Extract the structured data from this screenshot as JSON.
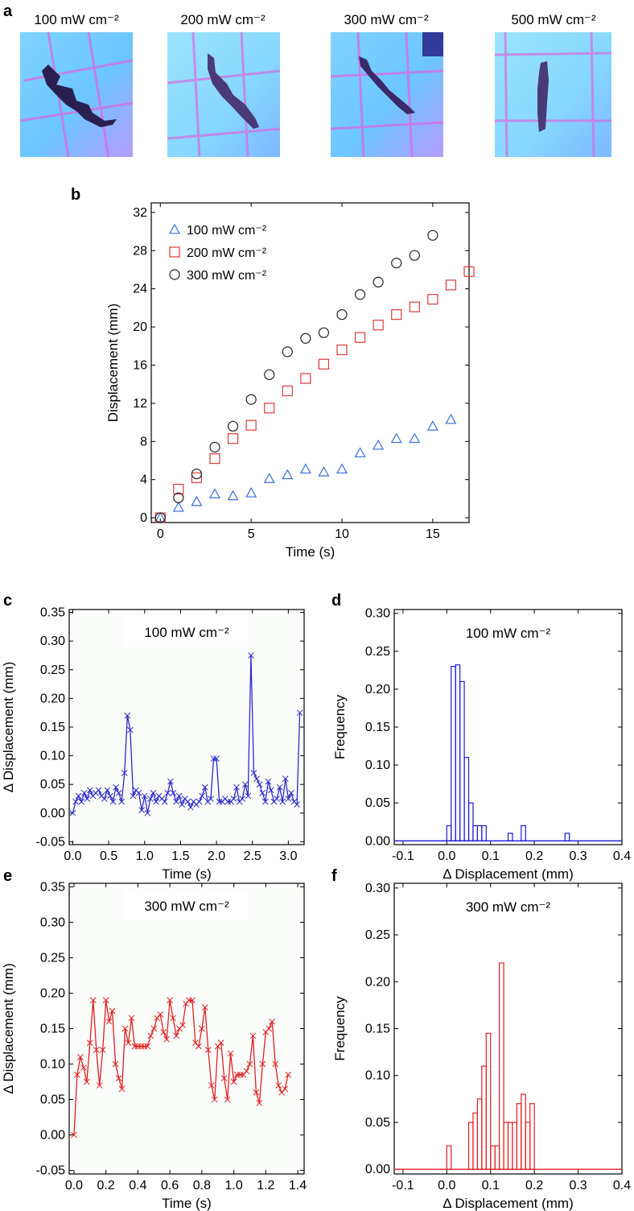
{
  "figure": {
    "panel_letters": [
      "a",
      "b",
      "c",
      "d",
      "e",
      "f"
    ]
  },
  "photos": {
    "labels": [
      "100 mW cm⁻²",
      "200 mW cm⁻²",
      "300 mW cm⁻²",
      "500 mW cm⁻²"
    ]
  },
  "colors": {
    "blue_series": "#3a6fd8",
    "red_series": "#e03a3a",
    "black_series": "#222222",
    "hist_blue": "#1a1adc",
    "hist_red": "#e02020",
    "trace_blue": "#2c2cc8",
    "trace_red": "#e02020"
  },
  "chart_data": [
    {
      "panel": "b",
      "type": "scatter",
      "xlabel": "Time (s)",
      "ylabel": "Displacement (mm)",
      "xlim": [
        -0.5,
        17
      ],
      "ylim": [
        -0.5,
        33
      ],
      "xticks": [
        0,
        5,
        10,
        15
      ],
      "yticks": [
        0,
        4,
        8,
        12,
        16,
        20,
        24,
        28,
        32
      ],
      "legend_position": "top-left",
      "series": [
        {
          "name": "100 mW cm⁻²",
          "marker": "triangle",
          "color": "#3a6fd8",
          "x": [
            0,
            1,
            2,
            3,
            4,
            5,
            6,
            7,
            8,
            9,
            10,
            11,
            12,
            13,
            14,
            15,
            16
          ],
          "y": [
            0,
            1.1,
            1.7,
            2.5,
            2.3,
            2.6,
            4.1,
            4.5,
            5.1,
            4.8,
            5.1,
            6.8,
            7.6,
            8.3,
            8.3,
            9.6,
            10.3
          ]
        },
        {
          "name": "200 mW cm⁻²",
          "marker": "square",
          "color": "#e03a3a",
          "x": [
            0,
            1,
            2,
            3,
            4,
            5,
            6,
            7,
            8,
            9,
            10,
            11,
            12,
            13,
            14,
            15,
            16,
            17
          ],
          "y": [
            0,
            3.0,
            4.2,
            6.2,
            8.3,
            9.7,
            11.5,
            13.3,
            14.6,
            16.1,
            17.6,
            18.9,
            20.2,
            21.3,
            22.1,
            22.9,
            24.4,
            25.8
          ]
        },
        {
          "name": "300 mW cm⁻²",
          "marker": "circle",
          "color": "#222222",
          "x": [
            0,
            1,
            2,
            3,
            4,
            5,
            6,
            7,
            8,
            9,
            10,
            11,
            12,
            13,
            14,
            15
          ],
          "y": [
            0,
            2.1,
            4.6,
            7.4,
            9.6,
            12.4,
            15.0,
            17.4,
            18.8,
            19.4,
            21.3,
            23.4,
            24.7,
            26.7,
            27.5,
            29.6
          ]
        }
      ]
    },
    {
      "panel": "c",
      "type": "line",
      "annotation": "100 mW cm⁻²",
      "xlabel": "Time (s)",
      "ylabel": "Δ Displacement (mm)",
      "xlim": [
        -0.05,
        3.22
      ],
      "ylim": [
        -0.055,
        0.355
      ],
      "xticks": [
        0.0,
        0.5,
        1.0,
        1.5,
        2.0,
        2.5,
        3.0
      ],
      "yticks": [
        -0.05,
        0.0,
        0.05,
        0.1,
        0.15,
        0.2,
        0.25,
        0.3,
        0.35
      ],
      "series": [
        {
          "color": "#2c2cc8",
          "marker": "x",
          "x": [
            0.0,
            0.04,
            0.08,
            0.12,
            0.16,
            0.2,
            0.24,
            0.28,
            0.32,
            0.36,
            0.4,
            0.44,
            0.48,
            0.52,
            0.56,
            0.6,
            0.64,
            0.68,
            0.72,
            0.76,
            0.8,
            0.84,
            0.88,
            0.92,
            0.96,
            1.0,
            1.04,
            1.08,
            1.12,
            1.16,
            1.2,
            1.24,
            1.28,
            1.32,
            1.36,
            1.4,
            1.44,
            1.48,
            1.52,
            1.56,
            1.6,
            1.64,
            1.68,
            1.72,
            1.76,
            1.8,
            1.84,
            1.88,
            1.92,
            1.96,
            2.0,
            2.04,
            2.08,
            2.12,
            2.16,
            2.2,
            2.24,
            2.28,
            2.32,
            2.36,
            2.4,
            2.44,
            2.48,
            2.52,
            2.56,
            2.6,
            2.64,
            2.68,
            2.72,
            2.76,
            2.8,
            2.84,
            2.88,
            2.92,
            2.96,
            3.0,
            3.04,
            3.08,
            3.12,
            3.16
          ],
          "y": [
            0.0,
            0.02,
            0.03,
            0.02,
            0.035,
            0.025,
            0.04,
            0.03,
            0.035,
            0.04,
            0.03,
            0.025,
            0.04,
            0.03,
            0.02,
            0.045,
            0.035,
            0.02,
            0.07,
            0.17,
            0.145,
            0.03,
            0.04,
            0.035,
            0.005,
            0.03,
            0.0,
            0.025,
            0.035,
            0.02,
            0.03,
            0.025,
            0.02,
            0.035,
            0.055,
            0.035,
            0.02,
            0.03,
            0.015,
            0.025,
            0.02,
            0.01,
            0.02,
            0.015,
            0.02,
            0.03,
            0.045,
            0.02,
            0.025,
            0.095,
            0.095,
            0.02,
            0.02,
            0.025,
            0.02,
            0.02,
            0.025,
            0.045,
            0.02,
            0.025,
            0.05,
            0.03,
            0.275,
            0.07,
            0.06,
            0.05,
            0.035,
            0.02,
            0.055,
            0.04,
            0.02,
            0.025,
            0.045,
            0.02,
            0.06,
            0.025,
            0.035,
            0.02,
            0.015,
            0.175
          ]
        }
      ]
    },
    {
      "panel": "d",
      "type": "bar",
      "annotation": "100 mW cm⁻²",
      "xlabel": "Δ Displacement (mm)",
      "ylabel": "Frequency",
      "xlim": [
        -0.12,
        0.4
      ],
      "ylim": [
        -0.005,
        0.305
      ],
      "xticks": [
        -0.1,
        0.0,
        0.1,
        0.2,
        0.3,
        0.4
      ],
      "yticks": [
        0.0,
        0.05,
        0.1,
        0.15,
        0.2,
        0.25,
        0.3
      ],
      "bin_width": 0.01,
      "bin_starts": [
        0.0,
        0.01,
        0.02,
        0.03,
        0.04,
        0.05,
        0.06,
        0.07,
        0.08,
        0.09,
        0.1,
        0.11,
        0.12,
        0.13,
        0.14,
        0.15,
        0.16,
        0.17,
        0.18,
        0.19,
        0.2,
        0.21,
        0.22,
        0.23,
        0.24,
        0.25,
        0.26,
        0.27,
        0.28,
        0.29
      ],
      "values": [
        0.02,
        0.23,
        0.232,
        0.21,
        0.11,
        0.05,
        0.02,
        0.02,
        0.02,
        0.0,
        0.0,
        0.0,
        0.0,
        0.0,
        0.01,
        0.0,
        0.0,
        0.02,
        0.0,
        0.0,
        0.0,
        0.0,
        0.0,
        0.0,
        0.0,
        0.0,
        0.0,
        0.01,
        0.0,
        0.0
      ],
      "color": "#1a1adc"
    },
    {
      "panel": "e",
      "type": "line",
      "annotation": "300 mW cm⁻²",
      "xlabel": "Time (s)",
      "ylabel": "Δ Displacement (mm)",
      "xlim": [
        -0.03,
        1.44
      ],
      "ylim": [
        -0.055,
        0.355
      ],
      "xticks": [
        0.0,
        0.2,
        0.4,
        0.6,
        0.8,
        1.0,
        1.2,
        1.4
      ],
      "yticks": [
        -0.05,
        0.0,
        0.05,
        0.1,
        0.15,
        0.2,
        0.25,
        0.3,
        0.35
      ],
      "series": [
        {
          "color": "#e02020",
          "marker": "x",
          "x": [
            0.0,
            0.02,
            0.04,
            0.06,
            0.08,
            0.1,
            0.12,
            0.14,
            0.16,
            0.18,
            0.2,
            0.22,
            0.24,
            0.26,
            0.28,
            0.3,
            0.32,
            0.34,
            0.36,
            0.38,
            0.4,
            0.42,
            0.44,
            0.46,
            0.48,
            0.5,
            0.52,
            0.54,
            0.56,
            0.58,
            0.6,
            0.62,
            0.64,
            0.66,
            0.68,
            0.7,
            0.72,
            0.74,
            0.76,
            0.78,
            0.8,
            0.82,
            0.84,
            0.86,
            0.88,
            0.9,
            0.92,
            0.94,
            0.96,
            0.98,
            1.0,
            1.02,
            1.04,
            1.06,
            1.08,
            1.1,
            1.12,
            1.14,
            1.16,
            1.18,
            1.2,
            1.22,
            1.24,
            1.26,
            1.28,
            1.3,
            1.32,
            1.34
          ],
          "y": [
            0.0,
            0.085,
            0.11,
            0.095,
            0.075,
            0.13,
            0.19,
            0.12,
            0.07,
            0.12,
            0.19,
            0.16,
            0.175,
            0.1,
            0.08,
            0.065,
            0.15,
            0.13,
            0.165,
            0.125,
            0.125,
            0.125,
            0.125,
            0.125,
            0.14,
            0.15,
            0.165,
            0.17,
            0.145,
            0.135,
            0.19,
            0.165,
            0.14,
            0.15,
            0.155,
            0.185,
            0.19,
            0.19,
            0.13,
            0.125,
            0.15,
            0.18,
            0.12,
            0.07,
            0.05,
            0.125,
            0.13,
            0.08,
            0.05,
            0.115,
            0.075,
            0.085,
            0.085,
            0.085,
            0.09,
            0.1,
            0.14,
            0.06,
            0.045,
            0.1,
            0.145,
            0.15,
            0.16,
            0.1,
            0.07,
            0.06,
            0.065,
            0.085
          ]
        }
      ]
    },
    {
      "panel": "f",
      "type": "bar",
      "annotation": "300 mW cm⁻²",
      "xlabel": "Δ Displacement (mm)",
      "ylabel": "Frequency",
      "xlim": [
        -0.12,
        0.4
      ],
      "ylim": [
        -0.005,
        0.305
      ],
      "xticks": [
        -0.1,
        0.0,
        0.1,
        0.2,
        0.3,
        0.4
      ],
      "yticks": [
        0.0,
        0.05,
        0.1,
        0.15,
        0.2,
        0.25,
        0.3
      ],
      "bin_width": 0.01,
      "bin_starts": [
        0.0,
        0.01,
        0.02,
        0.03,
        0.04,
        0.05,
        0.06,
        0.07,
        0.08,
        0.09,
        0.1,
        0.11,
        0.12,
        0.13,
        0.14,
        0.15,
        0.16,
        0.17,
        0.18,
        0.19
      ],
      "values": [
        0.025,
        0.0,
        0.0,
        0.0,
        0.0,
        0.05,
        0.06,
        0.075,
        0.11,
        0.145,
        0.025,
        0.025,
        0.22,
        0.05,
        0.05,
        0.05,
        0.07,
        0.08,
        0.05,
        0.07
      ],
      "color": "#e02020"
    }
  ]
}
